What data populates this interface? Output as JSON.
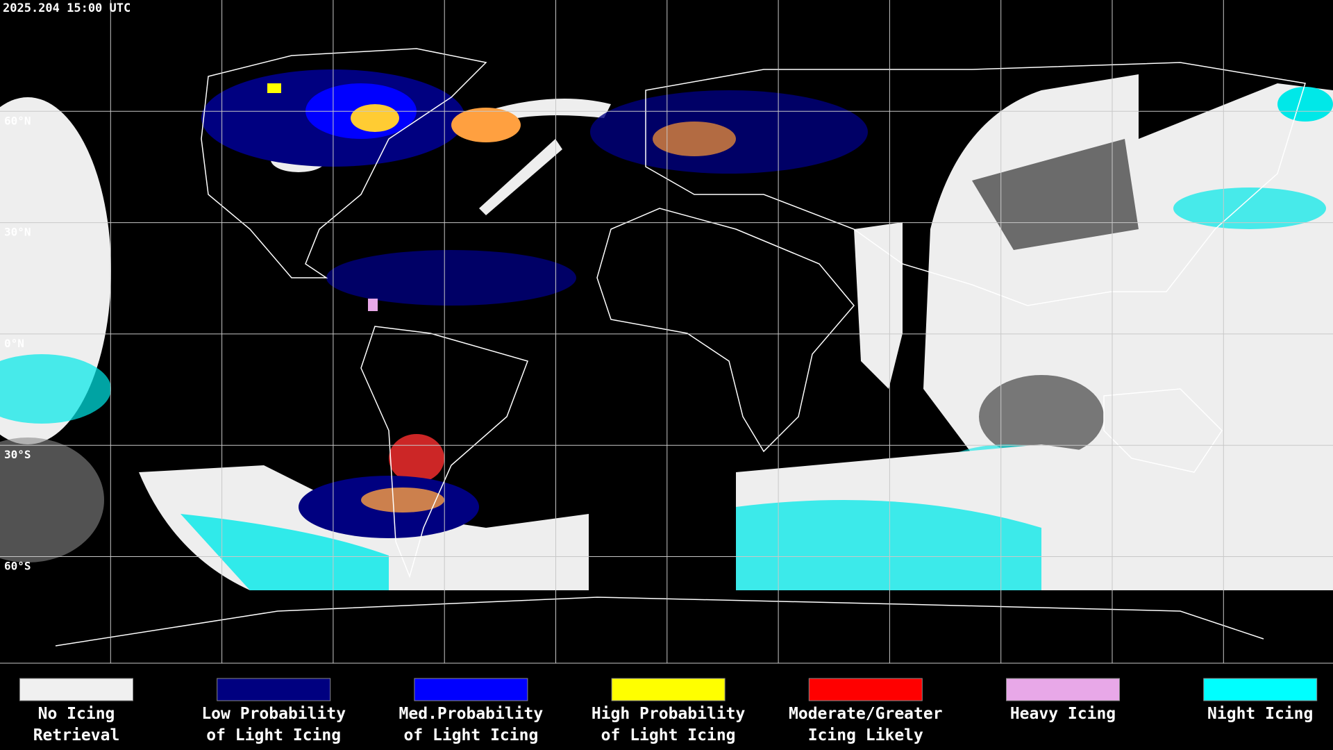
{
  "header": {
    "timestamp": "2025.204 15:00 UTC"
  },
  "latitude_labels": [
    "60°N",
    "30°N",
    "0°N",
    "30°S",
    "60°S"
  ],
  "legend": [
    {
      "lines": [
        "No Icing",
        "Retrieval"
      ],
      "color": "#f0f0f0"
    },
    {
      "lines": [
        "Low Probability",
        "of Light Icing"
      ],
      "color": "#000080"
    },
    {
      "lines": [
        "Med.Probability",
        "of Light Icing"
      ],
      "color": "#0000ff"
    },
    {
      "lines": [
        "High Probability",
        "of Light Icing"
      ],
      "color": "#ffff00"
    },
    {
      "lines": [
        "Moderate/Greater",
        "Icing Likely"
      ],
      "color": "#ff0000"
    },
    {
      "lines": [
        "Heavy Icing"
      ],
      "color": "#e8a8e8"
    },
    {
      "lines": [
        "Night Icing"
      ],
      "color": "#00ffff"
    }
  ]
}
